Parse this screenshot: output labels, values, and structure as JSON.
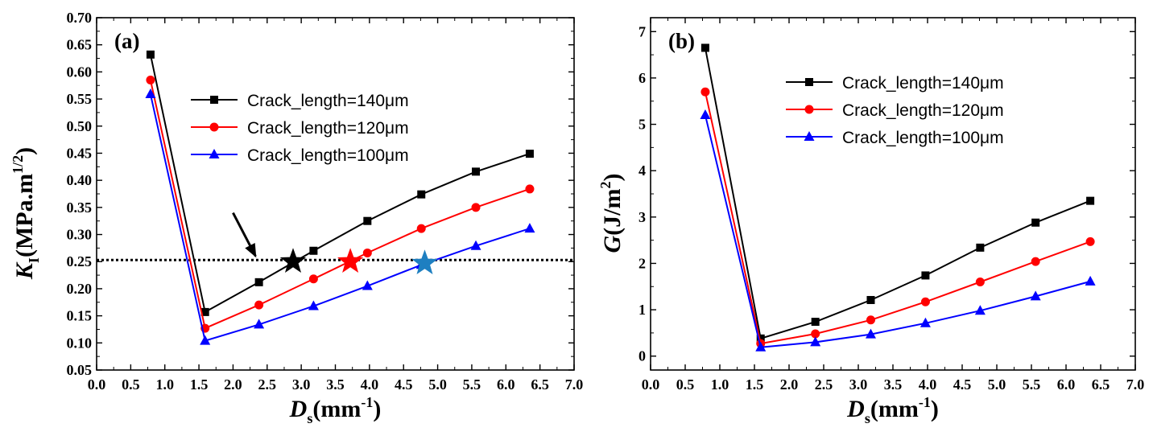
{
  "chart_data": [
    {
      "type": "line",
      "panel_label": "(a)",
      "x": [
        0.79,
        1.59,
        2.38,
        3.18,
        3.97,
        4.76,
        5.56,
        6.35
      ],
      "series": [
        {
          "name": "Crack_length=140μm",
          "color": "#000000",
          "marker": "square",
          "values": [
            0.632,
            0.157,
            0.212,
            0.27,
            0.325,
            0.374,
            0.416,
            0.449
          ]
        },
        {
          "name": "Crack_length=120μm",
          "color": "#ff0000",
          "marker": "circle",
          "values": [
            0.585,
            0.127,
            0.17,
            0.218,
            0.266,
            0.311,
            0.35,
            0.384
          ]
        },
        {
          "name": "Crack_length=100μm",
          "color": "#0000ff",
          "marker": "triangle",
          "values": [
            0.559,
            0.104,
            0.134,
            0.168,
            0.205,
            0.244,
            0.279,
            0.311
          ]
        }
      ],
      "reference_line": {
        "y": 0.253,
        "style": "dotted"
      },
      "annotations": [
        {
          "type": "star",
          "x": 2.88,
          "y": 0.25,
          "color": "#000000"
        },
        {
          "type": "star",
          "x": 3.72,
          "y": 0.25,
          "color": "#ff0000"
        },
        {
          "type": "star",
          "x": 4.81,
          "y": 0.247,
          "color": "#1e7fc1"
        },
        {
          "type": "arrow",
          "from": [
            2.0,
            0.34
          ],
          "to": [
            2.33,
            0.26
          ]
        }
      ],
      "xlim": [
        0.0,
        7.0
      ],
      "ylim": [
        0.05,
        0.7
      ],
      "xticks": [
        "0.0",
        "0.5",
        "1.0",
        "1.5",
        "2.0",
        "2.5",
        "3.0",
        "3.5",
        "4.0",
        "4.5",
        "5.0",
        "5.5",
        "6.0",
        "6.5",
        "7.0"
      ],
      "yticks": [
        "0.05",
        "0.10",
        "0.15",
        "0.20",
        "0.25",
        "0.30",
        "0.35",
        "0.40",
        "0.45",
        "0.50",
        "0.55",
        "0.60",
        "0.65",
        "0.70"
      ],
      "xlabel": {
        "main": "D",
        "sub": "s",
        "rest": "(mm",
        "sup": "-1",
        "end": ")"
      },
      "ylabel": {
        "main": "K",
        "sub": "I",
        "rest": "(MPa.m",
        "sup": "1/2",
        "end": ")"
      },
      "legend_position": "upper-middle"
    },
    {
      "type": "line",
      "panel_label": "(b)",
      "x": [
        0.79,
        1.59,
        2.38,
        3.18,
        3.97,
        4.76,
        5.56,
        6.35
      ],
      "series": [
        {
          "name": "Crack_length=140μm",
          "color": "#000000",
          "marker": "square",
          "values": [
            6.65,
            0.38,
            0.74,
            1.21,
            1.74,
            2.34,
            2.88,
            3.35
          ]
        },
        {
          "name": "Crack_length=120μm",
          "color": "#ff0000",
          "marker": "circle",
          "values": [
            5.7,
            0.27,
            0.48,
            0.78,
            1.17,
            1.6,
            2.04,
            2.47
          ]
        },
        {
          "name": "Crack_length=100μm",
          "color": "#0000ff",
          "marker": "triangle",
          "values": [
            5.2,
            0.19,
            0.3,
            0.47,
            0.71,
            0.98,
            1.29,
            1.61
          ]
        }
      ],
      "xlim": [
        0.0,
        7.0
      ],
      "ylim": [
        -0.3,
        7.3
      ],
      "xticks": [
        "0.0",
        "0.5",
        "1.0",
        "1.5",
        "2.0",
        "2.5",
        "3.0",
        "3.5",
        "4.0",
        "4.5",
        "5.0",
        "5.5",
        "6.0",
        "6.5",
        "7.0"
      ],
      "yticks": [
        "0",
        "1",
        "2",
        "3",
        "4",
        "5",
        "6",
        "7"
      ],
      "xlabel": {
        "main": "D",
        "sub": "s",
        "rest": "(mm",
        "sup": "-1",
        "end": ")"
      },
      "ylabel": {
        "main": "G",
        "rest": "(J/m",
        "sup": "2",
        "end": ")"
      },
      "legend_position": "upper-right"
    }
  ]
}
